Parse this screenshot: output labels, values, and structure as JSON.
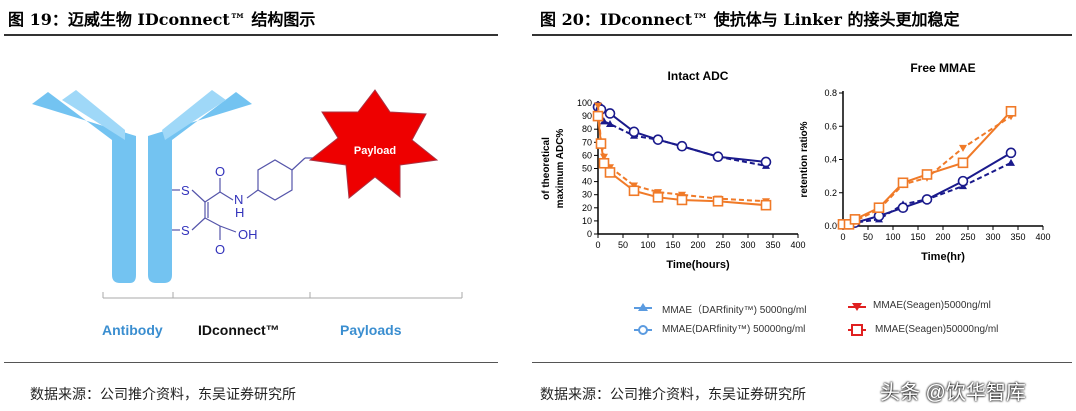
{
  "left": {
    "title": "图 19：迈威生物 IDconnect™ 结构图示",
    "payload": "Payload",
    "labels": [
      "Antibody",
      "IDconnect™",
      "Payloads"
    ],
    "atoms": {
      "s": "S",
      "o": "O",
      "nh": "N",
      "h": "H",
      "oh": "OH"
    },
    "source": "数据来源：公司推介资料，东吴证券研究所"
  },
  "right": {
    "title": "图 20：IDconnect™ 使抗体与 Linker 的接头更加稳定",
    "source": "数据来源：公司推介资料，东吴证券研究所",
    "watermark": "头条 @饮华智库"
  },
  "legend": [
    "MMAE（DARfinity™) 5000ng/ml",
    "MMAE(DARfinity™) 50000ng/ml",
    "MMAE(Seagen)5000ng/ml",
    "MMAE(Seagen)50000ng/ml"
  ],
  "colors": {
    "navy": "#1a1a8c",
    "orange": "#f07a28",
    "antibody": "#5bb8ee",
    "payload": "#ee0000"
  },
  "chart_data": [
    {
      "type": "line",
      "title": "Intact ADC",
      "xlabel": "Time(hours)",
      "ylabel": "of theoretical maximum ADC%",
      "xlim": [
        0,
        400
      ],
      "ylim": [
        0,
        100
      ],
      "xticks": [
        0,
        50,
        100,
        150,
        200,
        250,
        300,
        350,
        400
      ],
      "yticks": [
        0,
        10,
        20,
        30,
        40,
        50,
        60,
        70,
        80,
        90,
        100
      ],
      "series": [
        {
          "name": "MMAE（DARfinity™) 5000ng/ml",
          "marker": "triangle",
          "dash": true,
          "color": "navy",
          "x": [
            0,
            12,
            24,
            72,
            120,
            168,
            240,
            336
          ],
          "y": [
            97,
            86,
            84,
            75,
            72,
            67,
            59,
            52
          ]
        },
        {
          "name": "MMAE(DARfinity™) 50000ng/ml",
          "marker": "circle",
          "dash": false,
          "color": "navy",
          "x": [
            0,
            6,
            24,
            72,
            120,
            168,
            240,
            336
          ],
          "y": [
            97,
            95,
            92,
            78,
            72,
            67,
            59,
            55
          ]
        },
        {
          "name": "MMAE(Seagen)5000ng/ml",
          "marker": "down-triangle",
          "dash": true,
          "color": "orange",
          "x": [
            0,
            6,
            12,
            24,
            72,
            120,
            168,
            240,
            336
          ],
          "y": [
            98,
            70,
            59,
            51,
            37,
            32,
            30,
            27,
            25
          ]
        },
        {
          "name": "MMAE(Seagen)50000ng/ml",
          "marker": "square",
          "dash": false,
          "color": "orange",
          "x": [
            0,
            6,
            12,
            24,
            72,
            120,
            168,
            240,
            336
          ],
          "y": [
            90,
            69,
            54,
            47,
            33,
            28,
            26,
            25,
            22
          ]
        }
      ]
    },
    {
      "type": "line",
      "title": "Free MMAE",
      "xlabel": "Time(hr)",
      "ylabel": "retention ratio%",
      "xlim": [
        0,
        400
      ],
      "ylim": [
        0,
        0.8
      ],
      "xticks": [
        0,
        50,
        100,
        150,
        200,
        250,
        300,
        350,
        400
      ],
      "yticks": [
        "0.0",
        "0.2",
        "0.4",
        "0.6",
        "0.8"
      ],
      "series": [
        {
          "name": "MMAE（DARfinity™) 5000ng/ml",
          "marker": "triangle",
          "dash": true,
          "color": "navy",
          "x": [
            0,
            12,
            24,
            72,
            120,
            168,
            240,
            336
          ],
          "y": [
            0,
            0,
            0.02,
            0.04,
            0.13,
            0.16,
            0.24,
            0.38
          ]
        },
        {
          "name": "MMAE(DARfinity™) 50000ng/ml",
          "marker": "circle",
          "dash": false,
          "color": "navy",
          "x": [
            0,
            12,
            24,
            72,
            120,
            168,
            240,
            336
          ],
          "y": [
            0.01,
            0.01,
            0.02,
            0.06,
            0.11,
            0.16,
            0.27,
            0.44
          ]
        },
        {
          "name": "MMAE(Seagen)5000ng/ml",
          "marker": "down-triangle",
          "dash": true,
          "color": "orange",
          "x": [
            0,
            12,
            24,
            72,
            120,
            168,
            240,
            336
          ],
          "y": [
            0.01,
            0.01,
            0.03,
            0.1,
            0.25,
            0.29,
            0.47,
            0.66
          ]
        },
        {
          "name": "MMAE(Seagen)50000ng/ml",
          "marker": "square",
          "dash": false,
          "color": "orange",
          "x": [
            0,
            12,
            24,
            72,
            120,
            168,
            240,
            336
          ],
          "y": [
            0.01,
            0.01,
            0.04,
            0.11,
            0.26,
            0.31,
            0.38,
            0.69
          ]
        }
      ]
    }
  ]
}
